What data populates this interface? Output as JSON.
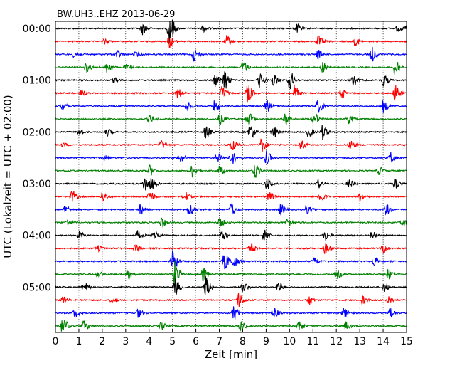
{
  "chart_data": {
    "type": "line",
    "title": "BW.UH3..EHZ 2013-06-29",
    "xlabel": "Zeit  [min]",
    "ylabel": "UTC (Lokalzeit = UTC + 02:00)",
    "xlim": [
      0,
      15
    ],
    "xticks": [
      "0",
      "1",
      "2",
      "3",
      "4",
      "5",
      "6",
      "7",
      "8",
      "9",
      "10",
      "11",
      "12",
      "13",
      "14",
      "15"
    ],
    "yticks": [
      "00:00",
      "01:00",
      "02:00",
      "03:00",
      "04:00",
      "05:00"
    ],
    "grid": "vertical dotted at each minute",
    "trace_interval_minutes": 15,
    "trace_count": 24,
    "trace_colors": [
      "#000000",
      "#ff0000",
      "#0000ff",
      "#008000"
    ],
    "series": [
      {
        "start": "00:00",
        "events": [
          [
            3.7,
            1.2
          ],
          [
            4.85,
            3.5
          ],
          [
            6.3,
            0.8
          ],
          [
            10.3,
            0.8
          ],
          [
            14.6,
            0.6
          ],
          [
            15.0,
            1.1
          ]
        ]
      },
      {
        "start": "00:15",
        "events": [
          [
            2.1,
            0.6
          ],
          [
            4.85,
            1.2
          ],
          [
            7.3,
            1.1
          ],
          [
            11.2,
            1.1
          ],
          [
            12.8,
            0.9
          ]
        ]
      },
      {
        "start": "00:30",
        "events": [
          [
            0.8,
            0.7
          ],
          [
            2.6,
            0.9
          ],
          [
            3.4,
            0.5
          ],
          [
            5.9,
            1.3
          ],
          [
            11.2,
            0.9
          ],
          [
            13.5,
            1.5
          ]
        ]
      },
      {
        "start": "00:45",
        "events": [
          [
            1.3,
            1.0
          ],
          [
            2.2,
            1.2
          ],
          [
            3.0,
            0.5
          ],
          [
            8.0,
            1.3
          ],
          [
            11.4,
            1.0
          ],
          [
            14.5,
            2.0
          ]
        ]
      },
      {
        "start": "01:00",
        "events": [
          [
            2.5,
            0.6
          ],
          [
            6.8,
            1.3
          ],
          [
            7.2,
            2.2
          ],
          [
            8.7,
            1.5
          ],
          [
            9.3,
            1.2
          ],
          [
            10.0,
            1.8
          ],
          [
            12.7,
            0.9
          ],
          [
            14.0,
            1.2
          ]
        ]
      },
      {
        "start": "01:15",
        "events": [
          [
            1.1,
            0.6
          ],
          [
            5.2,
            1.0
          ],
          [
            7.1,
            1.4
          ],
          [
            8.2,
            1.8
          ],
          [
            10.2,
            1.5
          ],
          [
            12.2,
            1.0
          ],
          [
            14.5,
            1.5
          ]
        ]
      },
      {
        "start": "01:30",
        "events": [
          [
            0.3,
            0.6
          ],
          [
            5.6,
            1.0
          ],
          [
            6.8,
            1.2
          ],
          [
            9.0,
            1.2
          ],
          [
            11.2,
            1.4
          ],
          [
            14.0,
            1.2
          ]
        ]
      },
      {
        "start": "01:45",
        "events": [
          [
            4.0,
            0.8
          ],
          [
            7.0,
            1.0
          ],
          [
            8.2,
            1.5
          ],
          [
            9.8,
            1.3
          ],
          [
            11.0,
            1.6
          ],
          [
            12.5,
            0.9
          ]
        ]
      },
      {
        "start": "02:00",
        "events": [
          [
            1.0,
            0.5
          ],
          [
            2.2,
            0.7
          ],
          [
            6.4,
            1.3
          ],
          [
            8.3,
            1.6
          ],
          [
            9.3,
            1.4
          ],
          [
            10.8,
            1.1
          ],
          [
            11.4,
            1.5
          ]
        ]
      },
      {
        "start": "02:15",
        "events": [
          [
            0.3,
            0.4
          ],
          [
            4.5,
            0.8
          ],
          [
            7.5,
            1.4
          ],
          [
            8.8,
            1.5
          ],
          [
            10.5,
            1.1
          ],
          [
            12.6,
            1.0
          ]
        ]
      },
      {
        "start": "02:30",
        "events": [
          [
            2.1,
            0.6
          ],
          [
            5.3,
            0.9
          ],
          [
            6.9,
            1.2
          ],
          [
            7.5,
            1.5
          ],
          [
            9.0,
            1.3
          ],
          [
            14.3,
            1.1
          ]
        ]
      },
      {
        "start": "02:45",
        "events": [
          [
            4.0,
            1.1
          ],
          [
            5.8,
            1.3
          ],
          [
            7.0,
            1.0
          ],
          [
            8.5,
            1.5
          ],
          [
            13.8,
            0.8
          ]
        ]
      },
      {
        "start": "03:00",
        "events": [
          [
            3.8,
            1.7
          ],
          [
            4.1,
            1.3
          ],
          [
            9.0,
            1.2
          ],
          [
            11.2,
            0.9
          ],
          [
            12.5,
            1.0
          ],
          [
            14.5,
            1.0
          ]
        ]
      },
      {
        "start": "03:15",
        "events": [
          [
            0.7,
            1.2
          ],
          [
            2.0,
            1.0
          ],
          [
            4.0,
            1.3
          ],
          [
            5.5,
            1.0
          ],
          [
            9.1,
            1.0
          ],
          [
            11.3,
            1.2
          ],
          [
            13.0,
            1.0
          ]
        ]
      },
      {
        "start": "03:30",
        "events": [
          [
            0.4,
            0.9
          ],
          [
            3.6,
            1.0
          ],
          [
            5.7,
            1.5
          ],
          [
            7.5,
            1.3
          ],
          [
            9.6,
            1.1
          ],
          [
            10.7,
            0.9
          ],
          [
            14.1,
            1.2
          ]
        ]
      },
      {
        "start": "03:45",
        "events": [
          [
            0.5,
            0.6
          ],
          [
            4.5,
            1.2
          ],
          [
            7.0,
            1.0
          ],
          [
            9.9,
            0.9
          ],
          [
            14.8,
            0.8
          ]
        ]
      },
      {
        "start": "04:00",
        "events": [
          [
            1.0,
            0.8
          ],
          [
            3.5,
            0.9
          ],
          [
            4.2,
            1.1
          ],
          [
            7.1,
            1.0
          ],
          [
            8.9,
            1.2
          ],
          [
            11.5,
            1.0
          ],
          [
            13.5,
            1.0
          ]
        ]
      },
      {
        "start": "04:15",
        "events": [
          [
            1.8,
            0.5
          ],
          [
            3.4,
            0.6
          ],
          [
            8.3,
            1.0
          ],
          [
            11.5,
            1.1
          ],
          [
            14.0,
            1.0
          ]
        ]
      },
      {
        "start": "04:30",
        "events": [
          [
            5.0,
            2.2
          ],
          [
            7.2,
            1.8
          ],
          [
            7.6,
            1.2
          ],
          [
            11.0,
            0.8
          ],
          [
            13.6,
            0.9
          ]
        ]
      },
      {
        "start": "04:45",
        "events": [
          [
            1.8,
            0.7
          ],
          [
            3.1,
            1.0
          ],
          [
            5.1,
            2.5
          ],
          [
            6.3,
            1.3
          ],
          [
            12.0,
            0.9
          ],
          [
            14.2,
            1.0
          ]
        ]
      },
      {
        "start": "05:00",
        "events": [
          [
            1.2,
            1.0
          ],
          [
            5.1,
            1.6
          ],
          [
            6.4,
            2.1
          ],
          [
            8.0,
            1.0
          ],
          [
            9.5,
            1.0
          ],
          [
            14.0,
            1.0
          ]
        ]
      },
      {
        "start": "05:15",
        "events": [
          [
            0.3,
            0.7
          ],
          [
            2.4,
            0.6
          ],
          [
            7.8,
            1.5
          ],
          [
            10.8,
            1.0
          ],
          [
            13.1,
            0.9
          ],
          [
            14.2,
            1.0
          ]
        ]
      },
      {
        "start": "05:30",
        "events": [
          [
            0.8,
            0.8
          ],
          [
            3.5,
            1.0
          ],
          [
            7.6,
            1.3
          ],
          [
            9.3,
            1.2
          ],
          [
            12.3,
            1.1
          ],
          [
            14.3,
            0.9
          ]
        ]
      },
      {
        "start": "05:45",
        "events": [
          [
            0.3,
            2.0
          ],
          [
            1.2,
            1.0
          ],
          [
            4.5,
            0.8
          ],
          [
            7.9,
            1.0
          ],
          [
            10.4,
            1.1
          ],
          [
            12.4,
            0.9
          ]
        ]
      }
    ]
  }
}
